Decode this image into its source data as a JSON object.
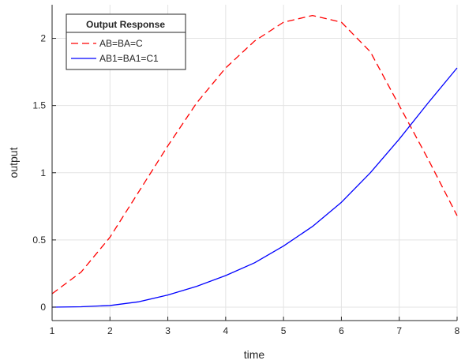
{
  "chart_data": {
    "type": "line",
    "title": "",
    "xlabel": "time",
    "ylabel": "output",
    "xlim": [
      1,
      8
    ],
    "ylim": [
      -0.1,
      2.25
    ],
    "xticks": [
      1,
      2,
      3,
      4,
      5,
      6,
      7,
      8
    ],
    "yticks": [
      0,
      0.5,
      1,
      1.5,
      2
    ],
    "xtick_labels": [
      "1",
      "2",
      "3",
      "4",
      "5",
      "6",
      "7",
      "8"
    ],
    "ytick_labels": [
      "0",
      "0.5",
      "1",
      "1.5",
      "2"
    ],
    "grid": true,
    "legend": {
      "title": "Output Response",
      "placement": "top-left"
    },
    "series": [
      {
        "name": "AB=BA=C",
        "color": "#ff0000",
        "style": "dashed",
        "x": [
          1,
          1.5,
          2,
          2.5,
          3,
          3.5,
          4,
          4.5,
          5,
          5.5,
          6,
          6.5,
          7,
          7.5,
          8
        ],
        "y": [
          0.1,
          0.26,
          0.52,
          0.86,
          1.2,
          1.52,
          1.78,
          1.98,
          2.12,
          2.17,
          2.12,
          1.9,
          1.5,
          1.1,
          0.68
        ]
      },
      {
        "name": "AB1=BA1=C1",
        "color": "#0000ff",
        "style": "solid",
        "x": [
          1,
          1.5,
          2,
          2.5,
          3,
          3.5,
          4,
          4.5,
          5,
          5.5,
          6,
          6.5,
          7,
          7.5,
          8
        ],
        "y": [
          0,
          0.003,
          0.012,
          0.04,
          0.09,
          0.155,
          0.235,
          0.33,
          0.455,
          0.6,
          0.78,
          1.0,
          1.25,
          1.52,
          1.78
        ]
      }
    ]
  }
}
